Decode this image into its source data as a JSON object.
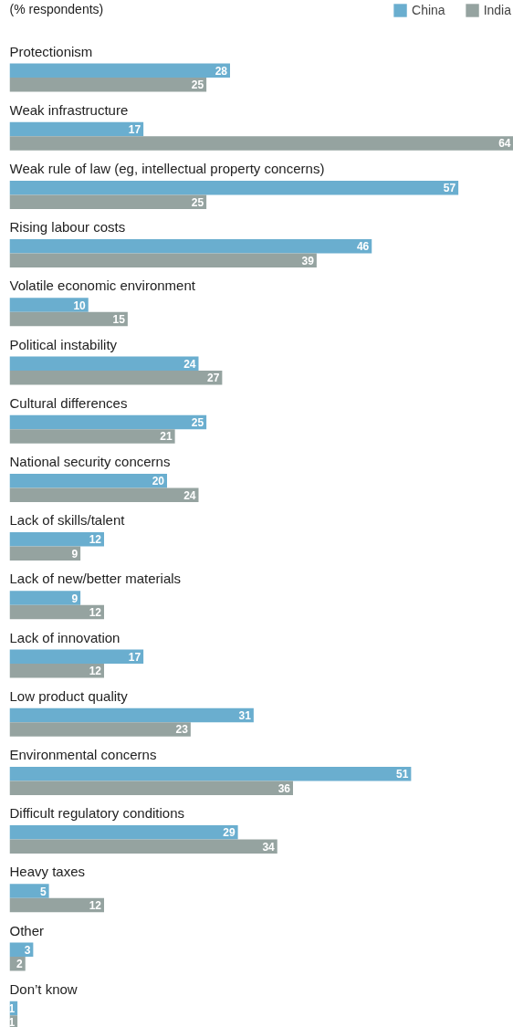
{
  "chart_data": {
    "type": "bar",
    "orientation": "horizontal",
    "subtitle": "(% respondents)",
    "categories": [
      "Protectionism",
      "Weak infrastructure",
      "Weak rule of law (eg, intellectual property concerns)",
      "Rising labour costs",
      "Volatile economic environment",
      "Political instability",
      "Cultural differences",
      "National security concerns",
      "Lack of skills/talent",
      "Lack of new/better materials",
      "Lack of innovation",
      "Low product quality",
      "Environmental concerns",
      "Difficult regulatory conditions",
      "Heavy taxes",
      "Other",
      "Don’t know"
    ],
    "series": [
      {
        "name": "China",
        "color": "#6aaecf",
        "values": [
          28,
          17,
          57,
          46,
          10,
          24,
          25,
          20,
          12,
          9,
          17,
          31,
          51,
          29,
          5,
          3,
          1
        ]
      },
      {
        "name": "India",
        "color": "#95a3a0",
        "values": [
          25,
          64,
          25,
          39,
          15,
          27,
          21,
          24,
          9,
          12,
          12,
          23,
          36,
          34,
          12,
          2,
          1
        ]
      }
    ],
    "data_labels": true,
    "legend": "top right",
    "grid": false
  }
}
